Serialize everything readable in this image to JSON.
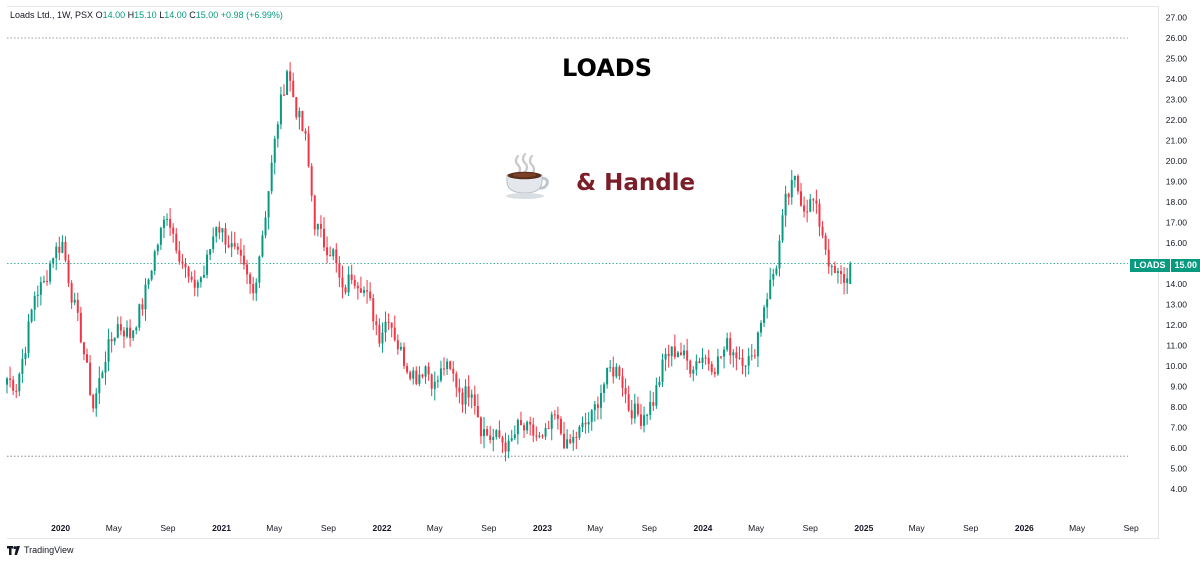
{
  "legend": {
    "name": "Loads Ltd., 1W, PSX",
    "o_label": "O",
    "o_val": "14.00",
    "h_label": "H",
    "h_val": "15.10",
    "l_label": "L",
    "l_val": "14.00",
    "c_label": "C",
    "c_val": "15.00",
    "change": "+0.98 (+6.99%)"
  },
  "annotations": {
    "title": "LOADS",
    "cup_icon": "hot-beverage-icon",
    "handle_text": "& Handle"
  },
  "last_price": {
    "symbol": "LOADS",
    "value": "15.00"
  },
  "brand": {
    "label": "TradingView",
    "icon": "tradingview-logo-icon"
  },
  "colors": {
    "up": "#089981",
    "down": "#f23645",
    "line_dotted": "#787b86",
    "badge": "#089981"
  },
  "chart_data": {
    "type": "candlestick",
    "title": "LOADS",
    "symbol": "Loads Ltd.",
    "interval": "1W",
    "exchange": "PSX",
    "y_range": [
      3,
      27
    ],
    "y_ticks": [
      "4.00",
      "5.00",
      "6.00",
      "7.00",
      "8.00",
      "9.00",
      "10.00",
      "11.00",
      "12.00",
      "13.00",
      "14.00",
      "15.00",
      "16.00",
      "17.00",
      "18.00",
      "19.00",
      "20.00",
      "21.00",
      "22.00",
      "23.00",
      "24.00",
      "25.00",
      "26.00",
      "27.00"
    ],
    "x_range": [
      "2019-09-01",
      "2026-11-01"
    ],
    "x_ticks": [
      {
        "label": "2020",
        "date": "2020-01-01",
        "bold": true
      },
      {
        "label": "May",
        "date": "2020-05-01",
        "bold": false
      },
      {
        "label": "Sep",
        "date": "2020-09-01",
        "bold": false
      },
      {
        "label": "2021",
        "date": "2021-01-01",
        "bold": true
      },
      {
        "label": "May",
        "date": "2021-05-01",
        "bold": false
      },
      {
        "label": "Sep",
        "date": "2021-09-01",
        "bold": false
      },
      {
        "label": "2022",
        "date": "2022-01-01",
        "bold": true
      },
      {
        "label": "May",
        "date": "2022-05-01",
        "bold": false
      },
      {
        "label": "Sep",
        "date": "2022-09-01",
        "bold": false
      },
      {
        "label": "2023",
        "date": "2023-01-01",
        "bold": true
      },
      {
        "label": "May",
        "date": "2023-05-01",
        "bold": false
      },
      {
        "label": "Sep",
        "date": "2023-09-01",
        "bold": false
      },
      {
        "label": "2024",
        "date": "2024-01-01",
        "bold": true
      },
      {
        "label": "May",
        "date": "2024-05-01",
        "bold": false
      },
      {
        "label": "Sep",
        "date": "2024-09-01",
        "bold": false
      },
      {
        "label": "2025",
        "date": "2025-01-01",
        "bold": true
      },
      {
        "label": "May",
        "date": "2025-05-01",
        "bold": false
      },
      {
        "label": "Sep",
        "date": "2025-09-01",
        "bold": false
      },
      {
        "label": "2026",
        "date": "2026-01-01",
        "bold": true
      },
      {
        "label": "May",
        "date": "2026-05-01",
        "bold": false
      },
      {
        "label": "Sep",
        "date": "2026-09-01",
        "bold": false
      }
    ],
    "horizontal_lines": [
      {
        "name": "resistance",
        "value": 26.0
      },
      {
        "name": "last-price",
        "value": 15.0
      },
      {
        "name": "support",
        "value": 5.6
      }
    ],
    "candles_start": "2019-09-01",
    "candles_interval_days": 7,
    "close_path": [
      [
        0,
        9.4
      ],
      [
        3,
        9.0
      ],
      [
        6,
        11.0
      ],
      [
        9,
        13.5
      ],
      [
        12,
        14.0
      ],
      [
        15,
        15.5
      ],
      [
        18,
        16.0
      ],
      [
        21,
        13.5
      ],
      [
        24,
        11.5
      ],
      [
        28,
        8.0
      ],
      [
        32,
        10.5
      ],
      [
        36,
        12.0
      ],
      [
        40,
        11.5
      ],
      [
        44,
        13.0
      ],
      [
        48,
        15.5
      ],
      [
        52,
        17.5
      ],
      [
        56,
        15.5
      ],
      [
        60,
        13.8
      ],
      [
        64,
        14.5
      ],
      [
        68,
        17.0
      ],
      [
        72,
        16.0
      ],
      [
        76,
        15.0
      ],
      [
        80,
        13.5
      ],
      [
        84,
        17.5
      ],
      [
        88,
        22.0
      ],
      [
        91,
        24.5
      ],
      [
        94,
        22.5
      ],
      [
        97,
        21.0
      ],
      [
        100,
        17.0
      ],
      [
        103,
        16.0
      ],
      [
        106,
        15.5
      ],
      [
        109,
        13.5
      ],
      [
        112,
        14.5
      ],
      [
        115,
        14.0
      ],
      [
        118,
        13.0
      ],
      [
        121,
        11.5
      ],
      [
        124,
        12.5
      ],
      [
        127,
        11.0
      ],
      [
        130,
        10.0
      ],
      [
        133,
        9.5
      ],
      [
        136,
        10.0
      ],
      [
        139,
        9.0
      ],
      [
        142,
        10.0
      ],
      [
        145,
        9.5
      ],
      [
        148,
        8.5
      ],
      [
        151,
        9.0
      ],
      [
        154,
        7.0
      ],
      [
        157,
        6.5
      ],
      [
        160,
        6.5
      ],
      [
        163,
        6.0
      ],
      [
        166,
        7.0
      ],
      [
        170,
        6.8
      ],
      [
        174,
        6.3
      ],
      [
        178,
        7.5
      ],
      [
        182,
        6.0
      ],
      [
        186,
        6.8
      ],
      [
        190,
        7.5
      ],
      [
        193,
        8.8
      ],
      [
        196,
        9.8
      ],
      [
        199,
        9.8
      ],
      [
        202,
        8.0
      ],
      [
        206,
        7.5
      ],
      [
        210,
        8.3
      ],
      [
        214,
        10.5
      ],
      [
        218,
        10.8
      ],
      [
        222,
        10.0
      ],
      [
        226,
        10.5
      ],
      [
        230,
        10.0
      ],
      [
        234,
        11.0
      ],
      [
        238,
        10.5
      ],
      [
        242,
        10.2
      ],
      [
        246,
        13.0
      ],
      [
        250,
        15.0
      ],
      [
        253,
        18.0
      ],
      [
        256,
        19.0
      ],
      [
        259,
        17.8
      ],
      [
        262,
        18.0
      ],
      [
        265,
        16.5
      ],
      [
        268,
        14.5
      ],
      [
        271,
        14.3
      ],
      [
        273,
        14.2
      ],
      [
        274,
        15.0
      ]
    ],
    "last_candle": {
      "date": "2025-06-29",
      "open": 14.0,
      "high": 15.1,
      "low": 14.0,
      "close": 15.0,
      "change": 0.98,
      "change_pct": 6.99
    }
  }
}
